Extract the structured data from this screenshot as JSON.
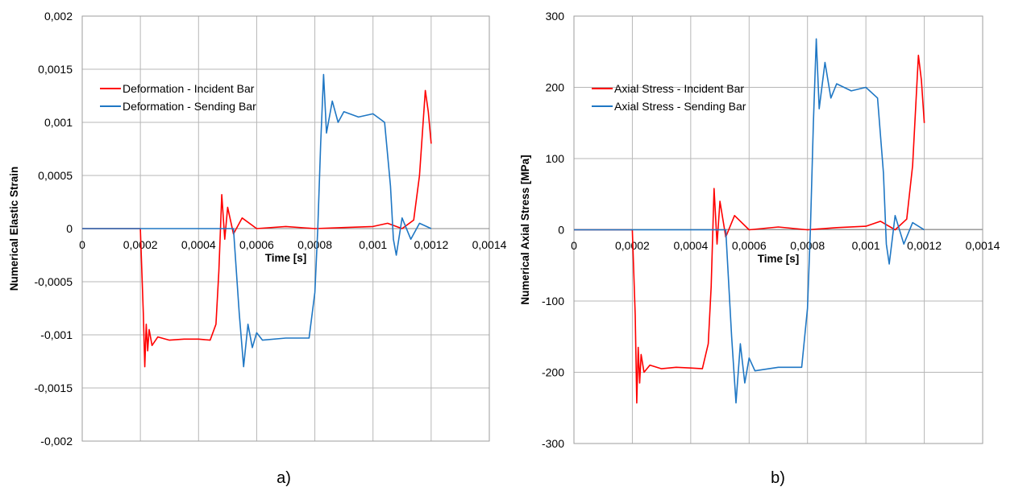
{
  "chart_data": [
    {
      "type": "line",
      "panel": "a",
      "caption": "a)",
      "xlabel": "Time [s]",
      "ylabel": "Numerical Elastic Strain",
      "xlim": [
        0,
        0.0014
      ],
      "ylim": [
        -0.002,
        0.002
      ],
      "x_ticks": [
        "0",
        "0,0002",
        "0,0004",
        "0,0006",
        "0,0008",
        "0,001",
        "0,0012",
        "0,0014"
      ],
      "y_ticks": [
        "0,002",
        "0,0015",
        "0,001",
        "0,0005",
        "0",
        "-0,0005",
        "-0,001",
        "-0,0015",
        "-0,002"
      ],
      "grid": true,
      "legend_position": "top-left",
      "series": [
        {
          "name": "Deformation - Incident Bar",
          "color": "#ff0000",
          "points": [
            [
              0,
              0
            ],
            [
              0.0002,
              0
            ],
            [
              0.00021,
              -0.0008
            ],
            [
              0.000215,
              -0.0013
            ],
            [
              0.00022,
              -0.0009
            ],
            [
              0.000225,
              -0.00115
            ],
            [
              0.00023,
              -0.00095
            ],
            [
              0.00024,
              -0.0011
            ],
            [
              0.00026,
              -0.00102
            ],
            [
              0.0003,
              -0.00105
            ],
            [
              0.00035,
              -0.00104
            ],
            [
              0.0004,
              -0.00104
            ],
            [
              0.00044,
              -0.00105
            ],
            [
              0.00046,
              -0.0009
            ],
            [
              0.00047,
              -0.0004
            ],
            [
              0.00048,
              0.00032
            ],
            [
              0.00049,
              -0.0001
            ],
            [
              0.0005,
              0.0002
            ],
            [
              0.00052,
              -5e-05
            ],
            [
              0.00055,
              0.0001
            ],
            [
              0.0006,
              0
            ],
            [
              0.0007,
              2e-05
            ],
            [
              0.0008,
              0
            ],
            [
              0.0009,
              1e-05
            ],
            [
              0.001,
              2e-05
            ],
            [
              0.00105,
              5e-05
            ],
            [
              0.0011,
              0
            ],
            [
              0.00114,
              8e-05
            ],
            [
              0.00116,
              0.0005
            ],
            [
              0.00118,
              0.0013
            ],
            [
              0.00119,
              0.0011
            ],
            [
              0.0012,
              0.0008
            ]
          ]
        },
        {
          "name": "Deformation - Sending Bar",
          "color": "#1f77c4",
          "points": [
            [
              0,
              0
            ],
            [
              0.00052,
              0
            ],
            [
              0.00054,
              -0.0008
            ],
            [
              0.000555,
              -0.0013
            ],
            [
              0.00057,
              -0.0009
            ],
            [
              0.000585,
              -0.00112
            ],
            [
              0.0006,
              -0.00098
            ],
            [
              0.00062,
              -0.00105
            ],
            [
              0.0007,
              -0.00103
            ],
            [
              0.00078,
              -0.00103
            ],
            [
              0.0008,
              -0.0006
            ],
            [
              0.00081,
              0
            ],
            [
              0.00082,
              0.0008
            ],
            [
              0.00083,
              0.00145
            ],
            [
              0.00084,
              0.0009
            ],
            [
              0.00086,
              0.0012
            ],
            [
              0.00088,
              0.001
            ],
            [
              0.0009,
              0.0011
            ],
            [
              0.00095,
              0.00105
            ],
            [
              0.001,
              0.00108
            ],
            [
              0.00104,
              0.001
            ],
            [
              0.00106,
              0.0004
            ],
            [
              0.00107,
              -0.0001
            ],
            [
              0.00108,
              -0.00025
            ],
            [
              0.0011,
              0.0001
            ],
            [
              0.00113,
              -0.0001
            ],
            [
              0.00116,
              5e-05
            ],
            [
              0.0012,
              0
            ]
          ]
        }
      ]
    },
    {
      "type": "line",
      "panel": "b",
      "caption": "b)",
      "xlabel": "Time [s]",
      "ylabel": "Numerical Axial Stress [MPa]",
      "xlim": [
        0,
        0.0014
      ],
      "ylim": [
        -300,
        300
      ],
      "x_ticks": [
        "0",
        "0,0002",
        "0,0004",
        "0,0006",
        "0,0008",
        "0,001",
        "0,0012",
        "0,0014"
      ],
      "y_ticks": [
        "300",
        "200",
        "100",
        "0",
        "-100",
        "-200",
        "-300"
      ],
      "grid": true,
      "legend_position": "top-left",
      "series": [
        {
          "name": "Axial Stress - Incident Bar",
          "color": "#ff0000",
          "points": [
            [
              0,
              0
            ],
            [
              0.0002,
              0
            ],
            [
              0.00021,
              -120
            ],
            [
              0.000215,
              -243
            ],
            [
              0.00022,
              -165
            ],
            [
              0.000225,
              -215
            ],
            [
              0.00023,
              -175
            ],
            [
              0.00024,
              -200
            ],
            [
              0.00026,
              -190
            ],
            [
              0.0003,
              -195
            ],
            [
              0.00035,
              -193
            ],
            [
              0.0004,
              -194
            ],
            [
              0.00044,
              -195
            ],
            [
              0.00046,
              -160
            ],
            [
              0.00047,
              -80
            ],
            [
              0.00048,
              58
            ],
            [
              0.00049,
              -20
            ],
            [
              0.0005,
              40
            ],
            [
              0.00052,
              -10
            ],
            [
              0.00055,
              20
            ],
            [
              0.0006,
              0
            ],
            [
              0.0007,
              4
            ],
            [
              0.0008,
              0
            ],
            [
              0.0009,
              3
            ],
            [
              0.001,
              5
            ],
            [
              0.00105,
              12
            ],
            [
              0.0011,
              0
            ],
            [
              0.00114,
              15
            ],
            [
              0.00116,
              90
            ],
            [
              0.00118,
              245
            ],
            [
              0.00119,
              210
            ],
            [
              0.0012,
              150
            ]
          ]
        },
        {
          "name": "Axial Stress - Sending Bar",
          "color": "#1f77c4",
          "points": [
            [
              0,
              0
            ],
            [
              0.00052,
              0
            ],
            [
              0.00054,
              -150
            ],
            [
              0.000555,
              -243
            ],
            [
              0.00057,
              -160
            ],
            [
              0.000585,
              -215
            ],
            [
              0.0006,
              -180
            ],
            [
              0.00062,
              -198
            ],
            [
              0.0007,
              -193
            ],
            [
              0.00078,
              -193
            ],
            [
              0.0008,
              -110
            ],
            [
              0.00081,
              0
            ],
            [
              0.00082,
              150
            ],
            [
              0.00083,
              268
            ],
            [
              0.00084,
              170
            ],
            [
              0.00086,
              235
            ],
            [
              0.00088,
              185
            ],
            [
              0.0009,
              205
            ],
            [
              0.00095,
              195
            ],
            [
              0.001,
              200
            ],
            [
              0.00104,
              185
            ],
            [
              0.00106,
              80
            ],
            [
              0.00107,
              -20
            ],
            [
              0.00108,
              -48
            ],
            [
              0.0011,
              20
            ],
            [
              0.00113,
              -20
            ],
            [
              0.00116,
              10
            ],
            [
              0.0012,
              0
            ]
          ]
        }
      ]
    }
  ]
}
